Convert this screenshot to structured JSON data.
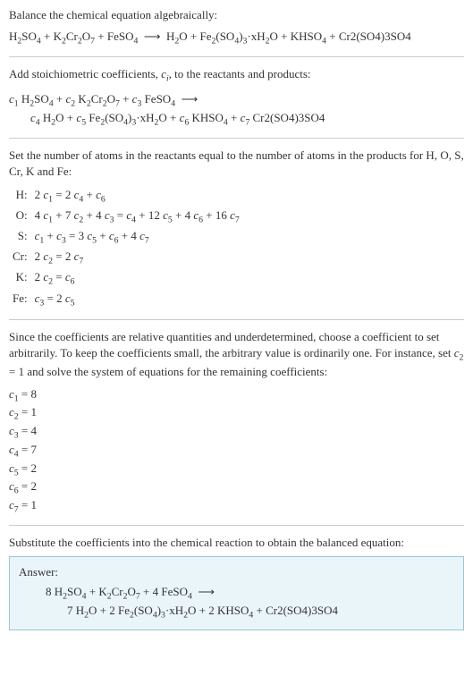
{
  "colors": {
    "text": "#333333",
    "rule": "#cccccc",
    "answer_border": "#9cc4d8",
    "answer_bg": "#eaf5fa"
  },
  "fontsize_body_pt": 10,
  "intro": "Balance the chemical equation algebraically:",
  "equation_plain": "H₂SO₄ + K₂Cr₂O₇ + FeSO₄  ⟶  H₂O + Fe₂(SO₄)₃·xH₂O + KHSO₄ + Cr2(SO4)3SO4",
  "stoich_intro": "Add stoichiometric coefficients, cᵢ, to the reactants and products:",
  "stoich_line1": "c₁ H₂SO₄ + c₂ K₂Cr₂O₇ + c₃ FeSO₄  ⟶",
  "stoich_line2": "c₄ H₂O + c₅ Fe₂(SO₄)₃·xH₂O + c₆ KHSO₄ + c₇ Cr2(SO4)3SO4",
  "atoms_intro": "Set the number of atoms in the reactants equal to the number of atoms in the products for H, O, S, Cr, K and Fe:",
  "atom_rows": [
    {
      "el": "H:",
      "eq": "2 c₁ = 2 c₄ + c₆"
    },
    {
      "el": "O:",
      "eq": "4 c₁ + 7 c₂ + 4 c₃ = c₄ + 12 c₅ + 4 c₆ + 16 c₇"
    },
    {
      "el": "S:",
      "eq": "c₁ + c₃ = 3 c₅ + c₆ + 4 c₇"
    },
    {
      "el": "Cr:",
      "eq": "2 c₂ = 2 c₇"
    },
    {
      "el": "K:",
      "eq": "2 c₂ = c₆"
    },
    {
      "el": "Fe:",
      "eq": "c₃ = 2 c₅"
    }
  ],
  "coef_intro": "Since the coefficients are relative quantities and underdetermined, choose a coefficient to set arbitrarily. To keep the coefficients small, the arbitrary value is ordinarily one. For instance, set c₂ = 1 and solve the system of equations for the remaining coefficients:",
  "coefficients": [
    "c₁ = 8",
    "c₂ = 1",
    "c₃ = 4",
    "c₄ = 7",
    "c₅ = 2",
    "c₆ = 2",
    "c₇ = 1"
  ],
  "substitute_text": "Substitute the coefficients into the chemical reaction to obtain the balanced equation:",
  "answer_label": "Answer:",
  "answer_line1": "8 H₂SO₄ + K₂Cr₂O₇ + 4 FeSO₄  ⟶",
  "answer_line2": "7 H₂O + 2 Fe₂(SO₄)₃·xH₂O + 2 KHSO₄ + Cr2(SO4)3SO4"
}
